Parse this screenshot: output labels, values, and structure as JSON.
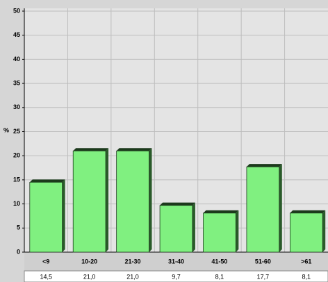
{
  "chart_data": {
    "type": "bar",
    "ylabel": "%",
    "categories": [
      "<9",
      "10-20",
      "21-30",
      "31-40",
      "41-50",
      "51-60",
      ">61"
    ],
    "values": [
      14.5,
      21.0,
      21.0,
      9.7,
      8.1,
      17.7,
      8.1
    ],
    "value_labels": [
      "14,5",
      "21,0",
      "21,0",
      "9,7",
      "8,1",
      "17,7",
      "8,1"
    ],
    "color": "#80f080",
    "ylim": [
      0,
      50
    ],
    "yticks": [
      0,
      5,
      10,
      15,
      20,
      25,
      30,
      35,
      40,
      45,
      50
    ],
    "grid": true
  }
}
